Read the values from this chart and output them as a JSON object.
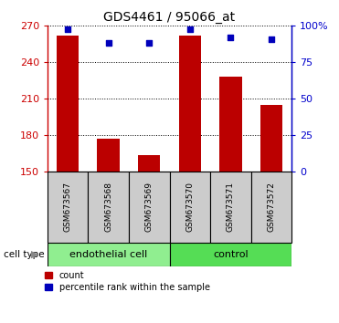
{
  "title": "GDS4461 / 95066_at",
  "samples": [
    "GSM673567",
    "GSM673568",
    "GSM673569",
    "GSM673570",
    "GSM673571",
    "GSM673572"
  ],
  "count_values": [
    262,
    177,
    163,
    262,
    228,
    205
  ],
  "percentile_values": [
    98,
    88,
    88,
    98,
    92,
    91
  ],
  "ylim_left": [
    150,
    270
  ],
  "ylim_right": [
    0,
    100
  ],
  "yticks_left": [
    150,
    180,
    210,
    240,
    270
  ],
  "yticks_right": [
    0,
    25,
    50,
    75,
    100
  ],
  "ytick_labels_right": [
    "0",
    "25",
    "50",
    "75",
    "100%"
  ],
  "bar_color": "#bb0000",
  "dot_color": "#0000bb",
  "bar_width": 0.55,
  "group_bg_color": "#cccccc",
  "left_color": "#cc0000",
  "right_color": "#0000cc",
  "cell_type_light_green": "#90ee90",
  "cell_type_mid_green": "#55dd55",
  "figsize": [
    3.71,
    3.54
  ],
  "dpi": 100
}
